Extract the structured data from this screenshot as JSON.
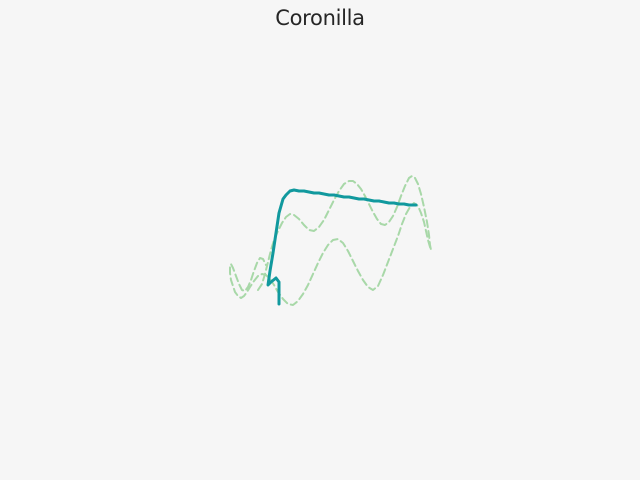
{
  "chart_data": {
    "type": "line",
    "title": "Coronilla",
    "xlabel": "",
    "ylabel": "",
    "axes_visible": false,
    "grid": false,
    "series": [
      {
        "style": "dashed",
        "color": "#a8d8a8",
        "x": [
          258,
          262,
          265,
          268,
          271,
          274,
          278,
          282,
          286,
          290,
          294,
          299,
          304,
          309,
          314,
          319,
          324,
          329,
          334,
          339,
          344,
          349,
          353,
          357,
          361,
          365,
          369,
          373,
          377,
          381,
          385,
          389,
          393,
          397,
          401,
          405,
          409,
          412,
          415,
          418,
          421,
          424,
          427,
          429,
          430,
          431,
          430,
          428,
          426,
          424,
          421,
          418,
          414,
          410,
          406,
          402,
          398,
          393,
          388,
          383,
          378,
          373,
          368,
          363,
          358,
          353,
          348,
          343,
          338,
          333,
          328,
          323,
          318,
          313,
          308,
          303,
          298,
          293,
          288,
          283,
          278,
          274,
          270,
          266,
          262,
          258,
          254,
          250,
          247,
          244,
          241,
          238,
          235,
          233,
          231,
          230,
          230,
          231,
          233,
          236,
          239,
          242,
          245,
          248,
          251,
          254,
          257,
          260,
          263,
          266
        ],
        "y": [
          290,
          284,
          274,
          262,
          250,
          240,
          231,
          223,
          217,
          214,
          215,
          219,
          225,
          230,
          231,
          227,
          220,
          210,
          200,
          191,
          184,
          181,
          181,
          184,
          189,
          196,
          204,
          212,
          219,
          224,
          225,
          222,
          216,
          207,
          196,
          186,
          178,
          176,
          178,
          184,
          194,
          207,
          222,
          235,
          245,
          250,
          247,
          240,
          231,
          222,
          213,
          206,
          203,
          207,
          214,
          224,
          236,
          249,
          262,
          275,
          286,
          290,
          287,
          280,
          271,
          261,
          251,
          243,
          239,
          240,
          245,
          253,
          263,
          274,
          285,
          294,
          301,
          305,
          304,
          299,
          292,
          285,
          279,
          275,
          274,
          276,
          281,
          287,
          292,
          296,
          298,
          296,
          292,
          286,
          280,
          273,
          267,
          264,
          268,
          276,
          284,
          290,
          291,
          287,
          280,
          271,
          263,
          258,
          259,
          265
        ]
      },
      {
        "style": "solid",
        "color": "#11999e",
        "x": [
          279,
          279,
          279,
          279,
          276,
          271,
          268,
          270,
          273,
          276,
          279,
          283,
          286,
          290,
          294,
          299,
          304,
          309,
          314,
          319,
          324,
          329,
          334,
          339,
          344,
          349,
          354,
          359,
          364,
          369,
          374,
          379,
          384,
          389,
          394,
          399,
          404,
          409,
          413,
          416
        ],
        "y": [
          304,
          298,
          290,
          282,
          278,
          282,
          285,
          271,
          253,
          233,
          213,
          199,
          195,
          191,
          190,
          191,
          191,
          192,
          193,
          193,
          194,
          195,
          195,
          196,
          197,
          197,
          198,
          199,
          199,
          200,
          201,
          201,
          202,
          203,
          203,
          204,
          204,
          205,
          205,
          205
        ]
      }
    ]
  }
}
